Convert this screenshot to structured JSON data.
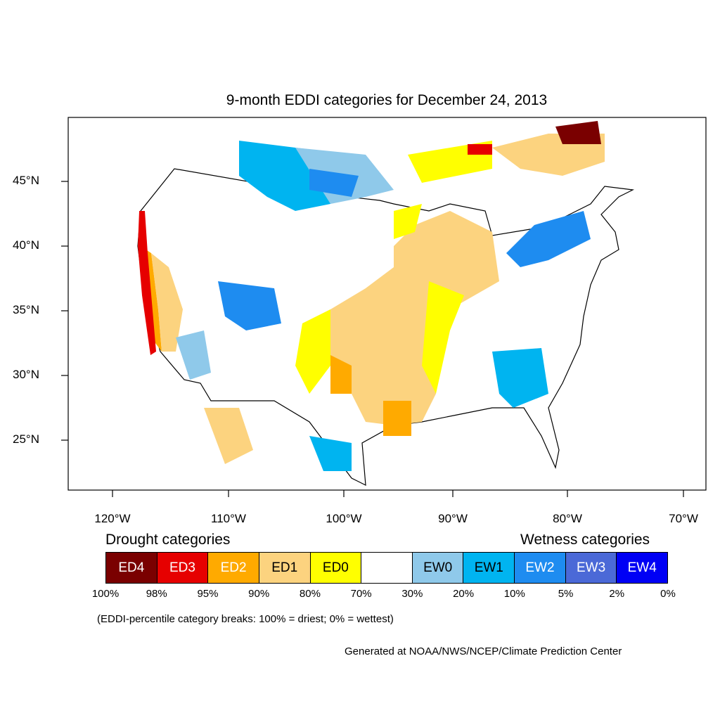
{
  "title": "9-month EDDI categories for December 24, 2013",
  "map": {
    "lat_ticks": [
      "45°N",
      "40°N",
      "35°N",
      "30°N",
      "25°N"
    ],
    "lon_ticks": [
      "120°W",
      "110°W",
      "100°W",
      "90°W",
      "80°W",
      "70°W"
    ],
    "region": "Contiguous United States"
  },
  "legend": {
    "drought_heading": "Drought categories",
    "wetness_heading": "Wetness categories",
    "categories": [
      {
        "label": "ED4",
        "color": "#7a0000",
        "text_color": "#ffffff"
      },
      {
        "label": "ED3",
        "color": "#e60000",
        "text_color": "#ffffff"
      },
      {
        "label": "ED2",
        "color": "#ffaa00",
        "text_color": "#ffffff"
      },
      {
        "label": "ED1",
        "color": "#fcd37f",
        "text_color": "#000000"
      },
      {
        "label": "ED0",
        "color": "#ffff00",
        "text_color": "#000000"
      },
      {
        "label": "",
        "color": "#ffffff",
        "text_color": "#000000"
      },
      {
        "label": "EW0",
        "color": "#8fc9ea",
        "text_color": "#000000"
      },
      {
        "label": "EW1",
        "color": "#00b4f0",
        "text_color": "#000000"
      },
      {
        "label": "EW2",
        "color": "#1e8cf0",
        "text_color": "#ffffff"
      },
      {
        "label": "EW3",
        "color": "#4b69d7",
        "text_color": "#ffffff"
      },
      {
        "label": "EW4",
        "color": "#0000f5",
        "text_color": "#ffffff"
      }
    ],
    "breaks": [
      "100%",
      "98%",
      "95%",
      "90%",
      "80%",
      "70%",
      "30%",
      "20%",
      "10%",
      "5%",
      "2%",
      "0%"
    ]
  },
  "note": "(EDDI-percentile category breaks: 100% = driest; 0% = wettest)",
  "credit": "Generated at NOAA/NWS/NCEP/Climate Prediction Center"
}
